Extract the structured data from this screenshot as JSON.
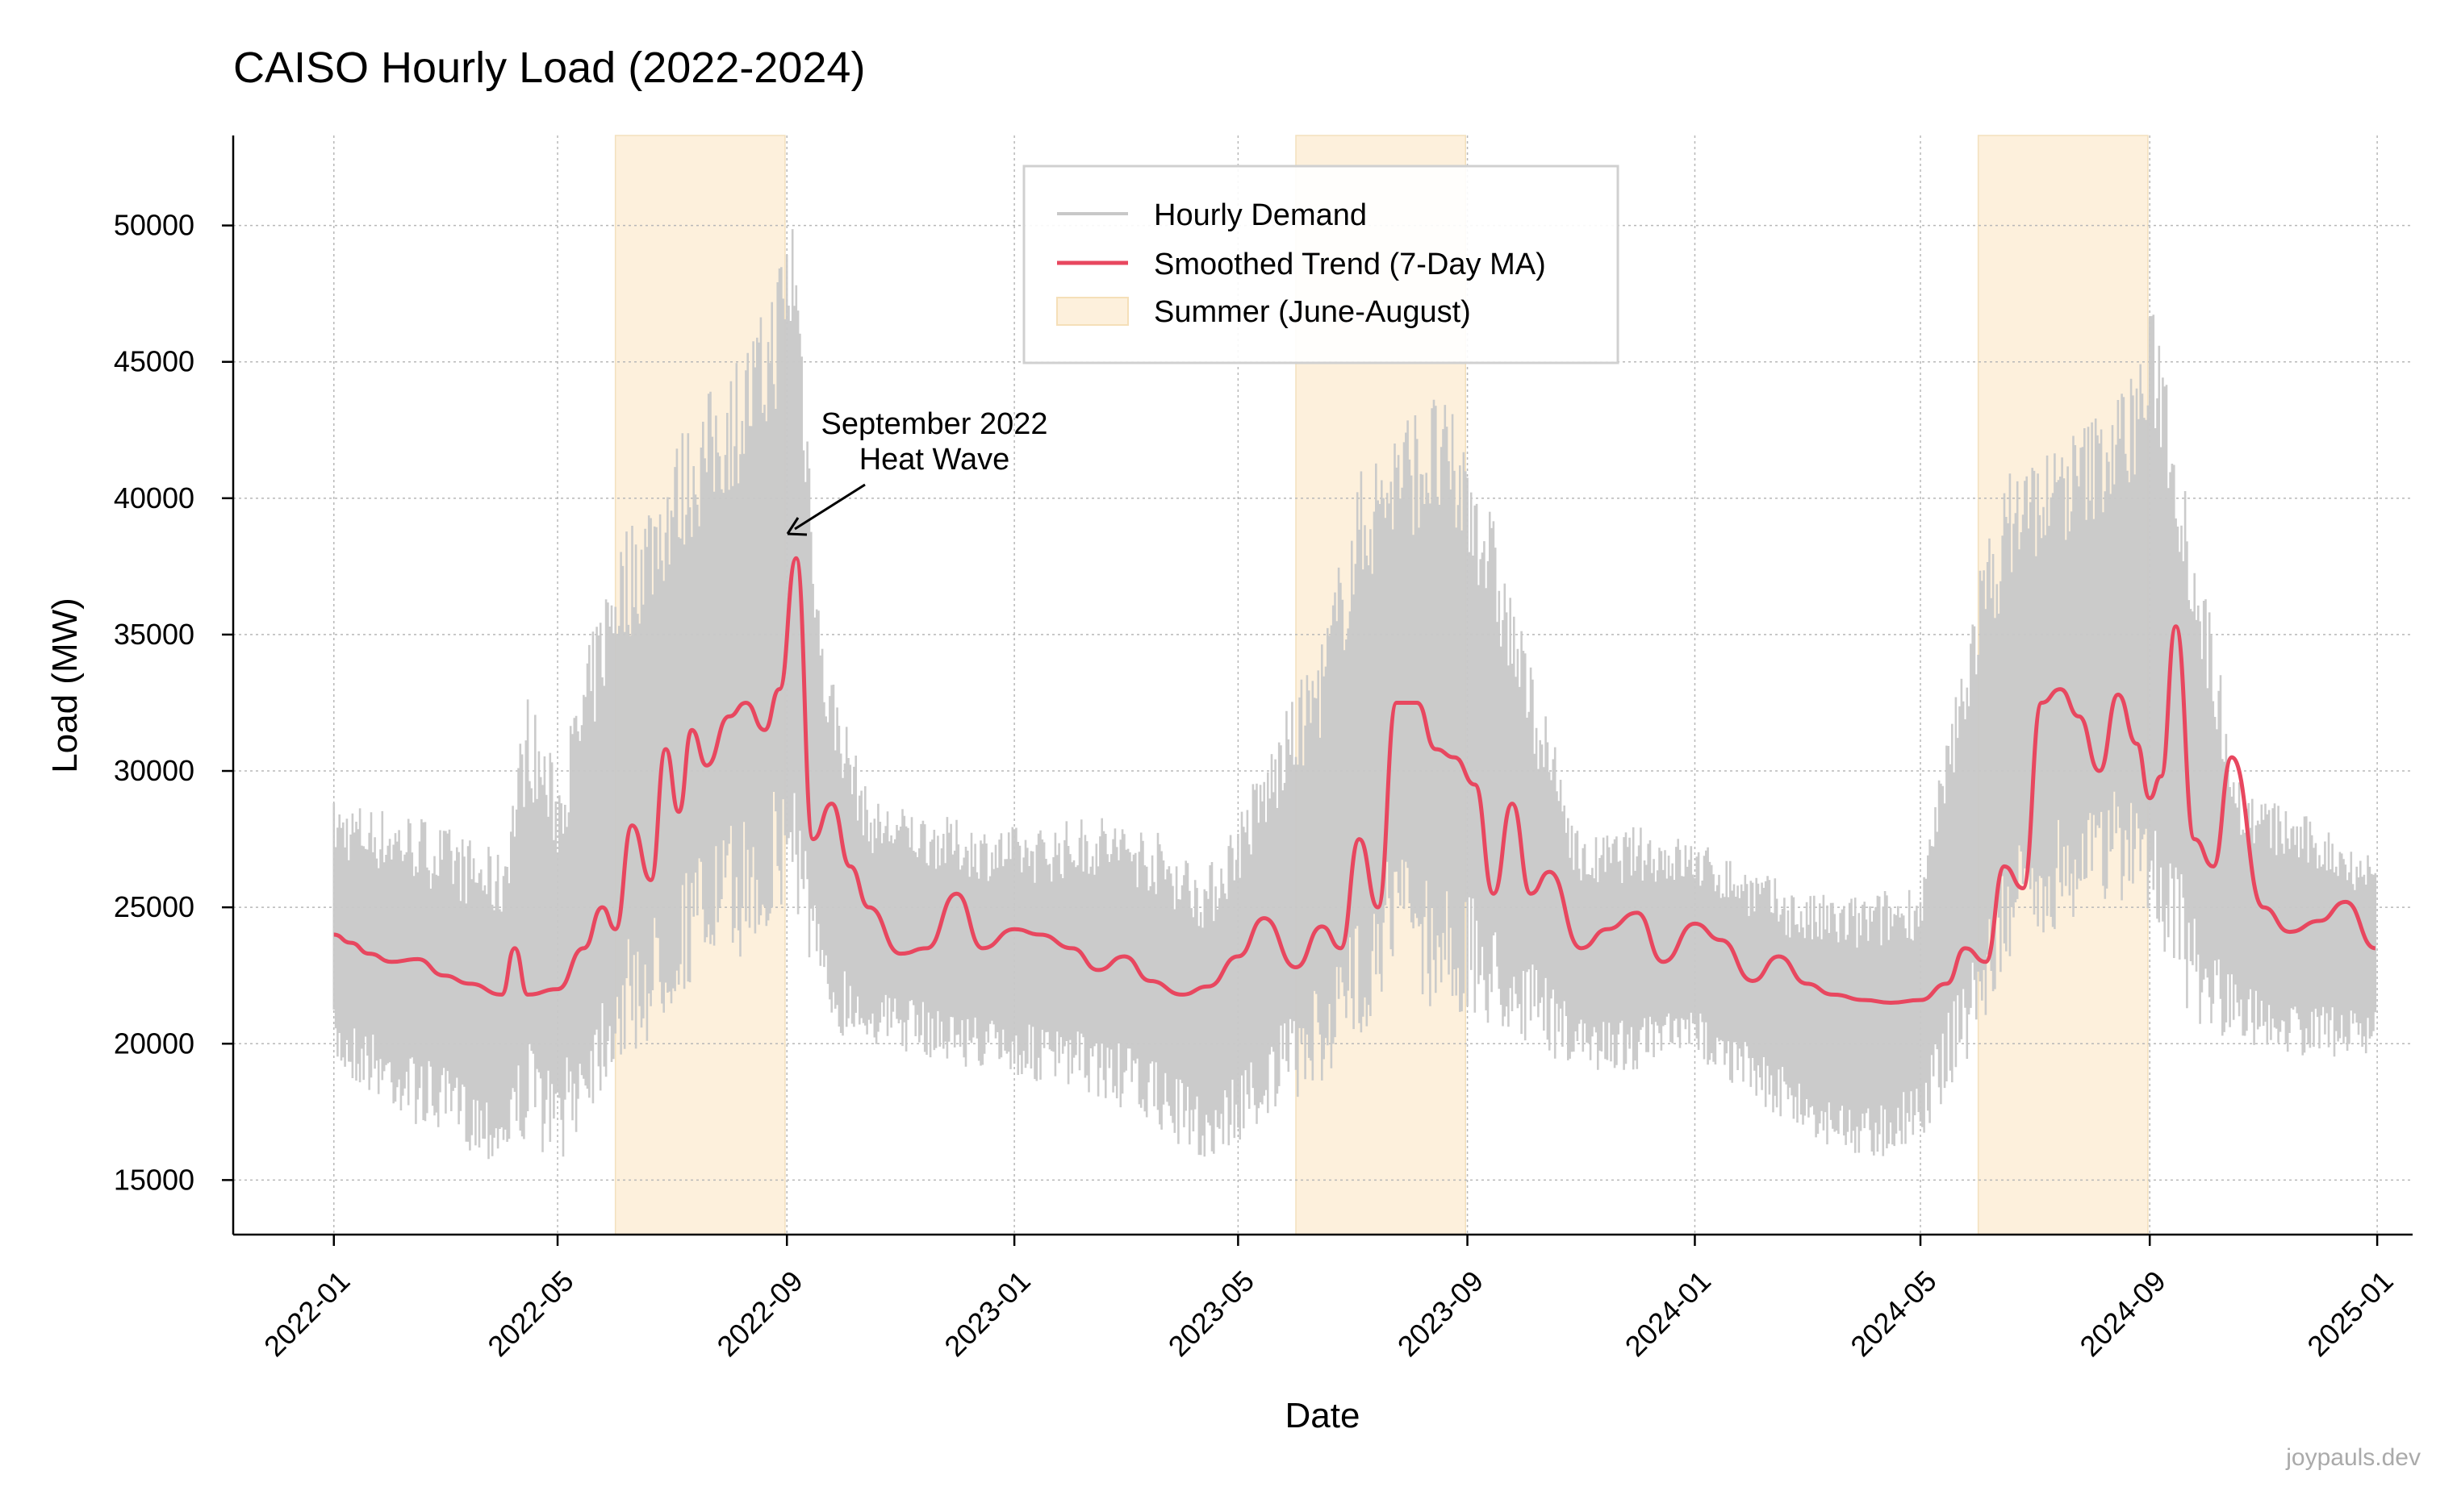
{
  "chart_data": {
    "type": "line",
    "title": "CAISO Hourly Load (2022-2024)",
    "xlabel": "Date",
    "ylabel": "Load (MW)",
    "xlim": [
      "2021-11-08",
      "2025-01-20"
    ],
    "ylim": [
      13000,
      53300
    ],
    "x_tick_labels": [
      "2022-01",
      "2022-05",
      "2022-09",
      "2023-01",
      "2023-05",
      "2023-09",
      "2024-01",
      "2024-05",
      "2024-09",
      "2025-01"
    ],
    "y_ticks": [
      15000,
      20000,
      25000,
      30000,
      35000,
      40000,
      45000,
      50000
    ],
    "grid": true,
    "legend_position": "top-center",
    "series": [
      {
        "name": "Hourly Demand",
        "color": "#c8c8c8",
        "style": "daily min-max range of hourly values",
        "x": [
          "2022-01-01",
          "2022-02-15",
          "2022-04-01",
          "2022-04-15",
          "2022-05-01",
          "2022-06-01",
          "2022-06-20",
          "2022-07-10",
          "2022-08-01",
          "2022-08-20",
          "2022-09-05",
          "2022-09-20",
          "2022-10-15",
          "2022-11-15",
          "2022-12-15",
          "2023-01-15",
          "2023-02-15",
          "2023-03-15",
          "2023-04-15",
          "2023-05-15",
          "2023-06-15",
          "2023-07-05",
          "2023-07-25",
          "2023-08-15",
          "2023-09-05",
          "2023-10-01",
          "2023-11-01",
          "2023-12-01",
          "2024-01-01",
          "2024-02-01",
          "2024-03-01",
          "2024-04-01",
          "2024-05-01",
          "2024-06-01",
          "2024-06-20",
          "2024-07-10",
          "2024-07-30",
          "2024-08-20",
          "2024-09-05",
          "2024-09-25",
          "2024-10-20",
          "2024-11-20",
          "2024-12-31"
        ],
        "low": [
          19000,
          17000,
          15500,
          16500,
          15500,
          19000,
          20000,
          22000,
          23000,
          23500,
          25000,
          20500,
          20000,
          19500,
          19000,
          18500,
          18000,
          17000,
          15500,
          17000,
          18500,
          20000,
          23000,
          21000,
          20500,
          20000,
          19000,
          19000,
          19500,
          18000,
          16500,
          15500,
          16500,
          20000,
          23000,
          24000,
          25000,
          25000,
          24000,
          20500,
          20000,
          19500,
          19500
        ],
        "high": [
          29000,
          28500,
          27000,
          33000,
          30000,
          38500,
          40500,
          43000,
          45000,
          47000,
          51500,
          35000,
          29000,
          28500,
          28000,
          28000,
          28500,
          28000,
          26500,
          30500,
          35000,
          41000,
          43000,
          44000,
          42000,
          35000,
          27500,
          28000,
          27500,
          26500,
          25500,
          25500,
          26000,
          37500,
          41500,
          42000,
          43000,
          44500,
          47500,
          39000,
          29500,
          28500,
          27000
        ]
      },
      {
        "name": "Smoothed Trend (7-Day MA)",
        "color": "#e8475f",
        "x": [
          "2022-01-01",
          "2022-01-10",
          "2022-01-20",
          "2022-02-01",
          "2022-02-15",
          "2022-03-01",
          "2022-03-15",
          "2022-04-01",
          "2022-04-08",
          "2022-04-15",
          "2022-05-01",
          "2022-05-15",
          "2022-05-25",
          "2022-06-01",
          "2022-06-10",
          "2022-06-20",
          "2022-06-28",
          "2022-07-05",
          "2022-07-12",
          "2022-07-20",
          "2022-08-01",
          "2022-08-10",
          "2022-08-20",
          "2022-08-28",
          "2022-09-06",
          "2022-09-15",
          "2022-09-25",
          "2022-10-05",
          "2022-10-15",
          "2022-11-01",
          "2022-11-15",
          "2022-12-01",
          "2022-12-15",
          "2023-01-01",
          "2023-01-15",
          "2023-02-01",
          "2023-02-15",
          "2023-03-01",
          "2023-03-15",
          "2023-04-01",
          "2023-04-15",
          "2023-05-01",
          "2023-05-15",
          "2023-06-01",
          "2023-06-15",
          "2023-06-25",
          "2023-07-05",
          "2023-07-15",
          "2023-07-25",
          "2023-08-05",
          "2023-08-15",
          "2023-08-25",
          "2023-09-05",
          "2023-09-15",
          "2023-09-25",
          "2023-10-05",
          "2023-10-15",
          "2023-11-01",
          "2023-11-15",
          "2023-12-01",
          "2023-12-15",
          "2024-01-01",
          "2024-01-15",
          "2024-02-01",
          "2024-02-15",
          "2024-03-01",
          "2024-03-15",
          "2024-04-01",
          "2024-04-15",
          "2024-05-01",
          "2024-05-15",
          "2024-05-25",
          "2024-06-05",
          "2024-06-15",
          "2024-06-25",
          "2024-07-05",
          "2024-07-15",
          "2024-07-25",
          "2024-08-05",
          "2024-08-15",
          "2024-08-25",
          "2024-09-01",
          "2024-09-07",
          "2024-09-15",
          "2024-09-25",
          "2024-10-05",
          "2024-10-15",
          "2024-11-01",
          "2024-11-15",
          "2024-12-01",
          "2024-12-15",
          "2024-12-31"
        ],
        "y": [
          24000,
          23700,
          23300,
          23000,
          23100,
          22500,
          22200,
          21800,
          23500,
          21800,
          22000,
          23500,
          25000,
          24200,
          28000,
          26000,
          30800,
          28500,
          31500,
          30200,
          32000,
          32500,
          31500,
          33000,
          37800,
          27500,
          28800,
          26500,
          25000,
          23300,
          23500,
          25500,
          23500,
          24200,
          24000,
          23500,
          22700,
          23200,
          22300,
          21800,
          22100,
          23200,
          24600,
          22800,
          24300,
          23500,
          27500,
          25000,
          32500,
          32500,
          30800,
          30500,
          29500,
          25500,
          28800,
          25500,
          26300,
          23500,
          24200,
          24800,
          23000,
          24400,
          23800,
          22300,
          23200,
          22200,
          21800,
          21600,
          21500,
          21600,
          22200,
          23500,
          23000,
          26500,
          25700,
          32500,
          33000,
          32000,
          30000,
          32800,
          31000,
          29000,
          29800,
          35300,
          27500,
          26500,
          30500,
          25000,
          24100,
          24500,
          25200,
          23500
        ]
      }
    ],
    "shaded_regions": [
      {
        "label": "Summer (June-August)",
        "color": "#fdf0dc",
        "ranges": [
          [
            "2022-06-01",
            "2022-08-31"
          ],
          [
            "2023-06-01",
            "2023-08-31"
          ],
          [
            "2024-06-01",
            "2024-08-31"
          ]
        ]
      }
    ],
    "annotations": [
      {
        "text_line1": "September 2022",
        "text_line2": "Heat Wave",
        "target_x": "2022-09-06",
        "target_y": 38500
      }
    ],
    "watermark": "joypauls.dev"
  }
}
